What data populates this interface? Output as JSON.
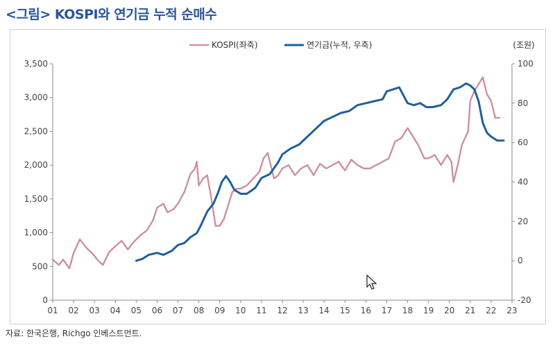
{
  "figure": {
    "title": "<그림> KOSPI와 연기금 누적 순매수",
    "source": "자료: 한국은행, Richgo 인베스트먼트."
  },
  "colors": {
    "kospi": "#cc8fa3",
    "pension": "#1f5f9b",
    "title": "#2a5597"
  },
  "chart_data": {
    "type": "line",
    "title": "",
    "unit_right": "(조원)",
    "x_ticks": [
      "01",
      "02",
      "03",
      "04",
      "05",
      "06",
      "07",
      "08",
      "09",
      "10",
      "11",
      "12",
      "13",
      "14",
      "15",
      "16",
      "17",
      "18",
      "19",
      "20",
      "21",
      "22",
      "23"
    ],
    "x_range": [
      2001,
      2023
    ],
    "left_axis": {
      "range": [
        0,
        3500
      ],
      "ticks": [
        "0",
        "500",
        "1,000",
        "1,500",
        "2,000",
        "2,500",
        "3,000",
        "3,500"
      ],
      "tick_values": [
        0,
        500,
        1000,
        1500,
        2000,
        2500,
        3000,
        3500
      ]
    },
    "right_axis": {
      "range": [
        -20,
        100
      ],
      "ticks": [
        "-20",
        "0",
        "20",
        "40",
        "60",
        "80",
        "100"
      ],
      "tick_values": [
        -20,
        0,
        20,
        40,
        60,
        80,
        100
      ]
    },
    "series": [
      {
        "name": "KOSPI(좌축)",
        "axis": "left",
        "points": [
          [
            2001.0,
            600
          ],
          [
            2001.3,
            520
          ],
          [
            2001.5,
            600
          ],
          [
            2001.8,
            470
          ],
          [
            2002.0,
            700
          ],
          [
            2002.3,
            900
          ],
          [
            2002.6,
            780
          ],
          [
            2002.9,
            690
          ],
          [
            2003.2,
            580
          ],
          [
            2003.4,
            520
          ],
          [
            2003.7,
            710
          ],
          [
            2004.0,
            800
          ],
          [
            2004.3,
            880
          ],
          [
            2004.6,
            750
          ],
          [
            2004.9,
            870
          ],
          [
            2005.2,
            960
          ],
          [
            2005.5,
            1030
          ],
          [
            2005.8,
            1180
          ],
          [
            2006.0,
            1370
          ],
          [
            2006.3,
            1430
          ],
          [
            2006.5,
            1300
          ],
          [
            2006.8,
            1350
          ],
          [
            2007.0,
            1430
          ],
          [
            2007.3,
            1600
          ],
          [
            2007.6,
            1870
          ],
          [
            2007.8,
            1940
          ],
          [
            2007.9,
            2050
          ],
          [
            2008.0,
            1700
          ],
          [
            2008.2,
            1800
          ],
          [
            2008.4,
            1850
          ],
          [
            2008.6,
            1500
          ],
          [
            2008.8,
            1100
          ],
          [
            2009.0,
            1100
          ],
          [
            2009.2,
            1200
          ],
          [
            2009.4,
            1400
          ],
          [
            2009.6,
            1600
          ],
          [
            2009.8,
            1650
          ],
          [
            2010.0,
            1650
          ],
          [
            2010.3,
            1700
          ],
          [
            2010.6,
            1800
          ],
          [
            2010.9,
            1900
          ],
          [
            2011.1,
            2100
          ],
          [
            2011.3,
            2180
          ],
          [
            2011.6,
            1800
          ],
          [
            2011.8,
            1850
          ],
          [
            2012.0,
            1950
          ],
          [
            2012.3,
            2000
          ],
          [
            2012.6,
            1850
          ],
          [
            2012.9,
            1950
          ],
          [
            2013.2,
            2000
          ],
          [
            2013.5,
            1850
          ],
          [
            2013.8,
            2020
          ],
          [
            2014.1,
            1950
          ],
          [
            2014.4,
            2000
          ],
          [
            2014.7,
            2050
          ],
          [
            2015.0,
            1920
          ],
          [
            2015.3,
            2080
          ],
          [
            2015.6,
            2000
          ],
          [
            2015.9,
            1950
          ],
          [
            2016.2,
            1950
          ],
          [
            2016.5,
            2000
          ],
          [
            2016.8,
            2050
          ],
          [
            2017.1,
            2100
          ],
          [
            2017.4,
            2350
          ],
          [
            2017.7,
            2400
          ],
          [
            2017.9,
            2500
          ],
          [
            2018.0,
            2550
          ],
          [
            2018.2,
            2450
          ],
          [
            2018.5,
            2300
          ],
          [
            2018.8,
            2100
          ],
          [
            2019.0,
            2100
          ],
          [
            2019.3,
            2150
          ],
          [
            2019.6,
            2000
          ],
          [
            2019.9,
            2150
          ],
          [
            2020.1,
            2050
          ],
          [
            2020.2,
            1750
          ],
          [
            2020.4,
            2000
          ],
          [
            2020.6,
            2300
          ],
          [
            2020.9,
            2500
          ],
          [
            2021.0,
            2950
          ],
          [
            2021.2,
            3100
          ],
          [
            2021.4,
            3200
          ],
          [
            2021.6,
            3300
          ],
          [
            2021.8,
            3050
          ],
          [
            2022.0,
            2950
          ],
          [
            2022.2,
            2700
          ],
          [
            2022.4,
            2700
          ]
        ]
      },
      {
        "name": "연기금(누적, 우축)",
        "axis": "right",
        "points": [
          [
            2005.0,
            0
          ],
          [
            2005.3,
            1
          ],
          [
            2005.6,
            3
          ],
          [
            2006.0,
            4
          ],
          [
            2006.3,
            3
          ],
          [
            2006.7,
            5
          ],
          [
            2007.0,
            8
          ],
          [
            2007.3,
            9
          ],
          [
            2007.6,
            12
          ],
          [
            2007.9,
            14
          ],
          [
            2008.1,
            18
          ],
          [
            2008.4,
            25
          ],
          [
            2008.7,
            29
          ],
          [
            2008.9,
            34
          ],
          [
            2009.1,
            40
          ],
          [
            2009.3,
            43
          ],
          [
            2009.5,
            40
          ],
          [
            2009.7,
            36
          ],
          [
            2010.0,
            34
          ],
          [
            2010.3,
            34
          ],
          [
            2010.7,
            37
          ],
          [
            2011.0,
            42
          ],
          [
            2011.4,
            44
          ],
          [
            2011.8,
            50
          ],
          [
            2012.0,
            54
          ],
          [
            2012.4,
            57
          ],
          [
            2012.8,
            59
          ],
          [
            2013.2,
            63
          ],
          [
            2013.6,
            67
          ],
          [
            2014.0,
            71
          ],
          [
            2014.4,
            73
          ],
          [
            2014.8,
            75
          ],
          [
            2015.2,
            76
          ],
          [
            2015.6,
            79
          ],
          [
            2016.0,
            80
          ],
          [
            2016.4,
            81
          ],
          [
            2016.8,
            82
          ],
          [
            2017.0,
            86
          ],
          [
            2017.3,
            87
          ],
          [
            2017.6,
            88
          ],
          [
            2017.8,
            84
          ],
          [
            2018.0,
            80
          ],
          [
            2018.3,
            79
          ],
          [
            2018.6,
            80
          ],
          [
            2018.9,
            78
          ],
          [
            2019.2,
            78
          ],
          [
            2019.6,
            79
          ],
          [
            2019.9,
            82
          ],
          [
            2020.2,
            87
          ],
          [
            2020.5,
            88
          ],
          [
            2020.8,
            90
          ],
          [
            2021.0,
            89
          ],
          [
            2021.2,
            87
          ],
          [
            2021.4,
            81
          ],
          [
            2021.6,
            70
          ],
          [
            2021.8,
            65
          ],
          [
            2022.0,
            63
          ],
          [
            2022.3,
            61
          ],
          [
            2022.6,
            61
          ]
        ]
      }
    ],
    "legend": [
      "KOSPI(좌축)",
      "연기금(누적, 우축)"
    ],
    "legend_position": "top-center"
  }
}
